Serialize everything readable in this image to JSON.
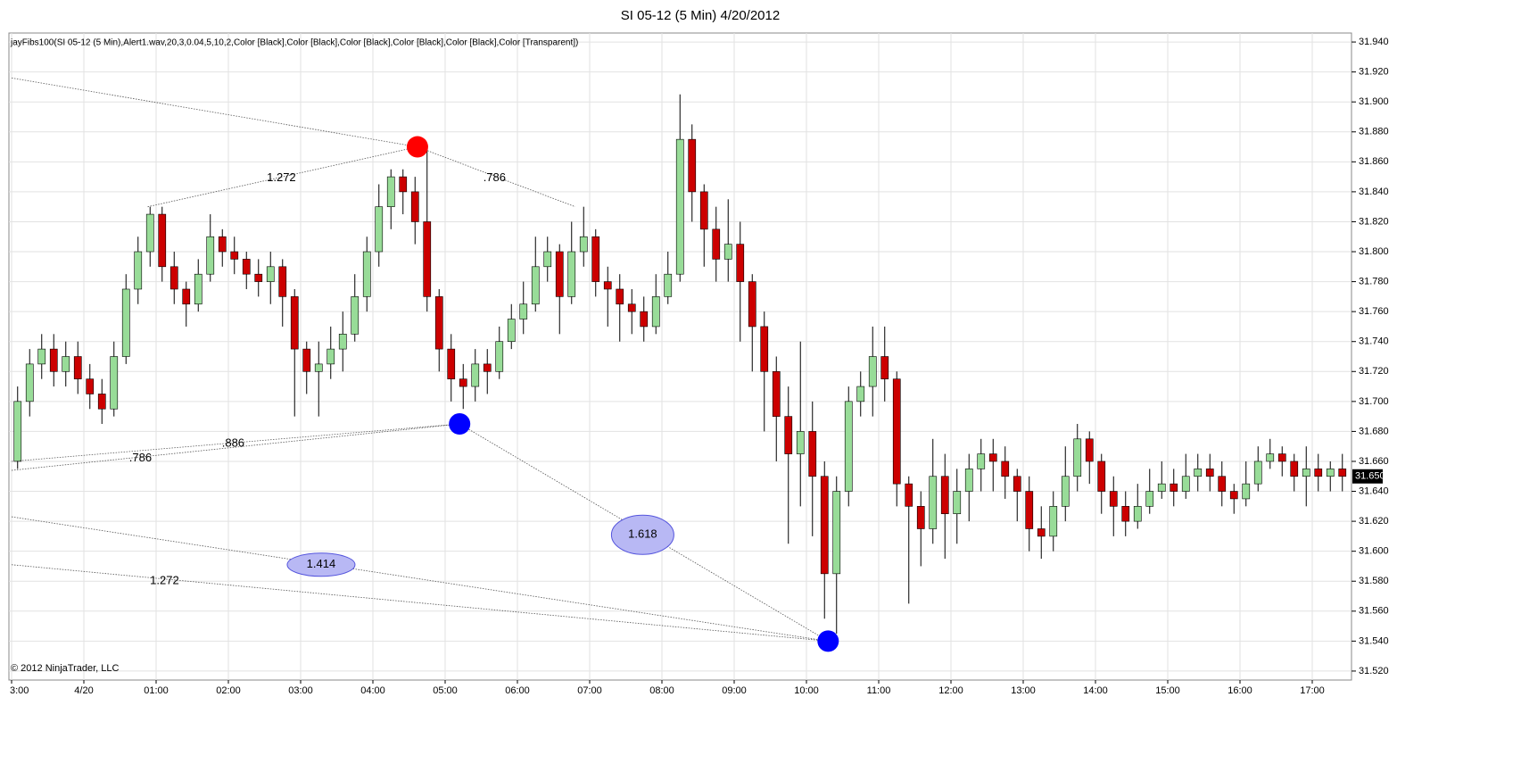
{
  "chart_data": {
    "type": "candlestick",
    "title": "SI 05-12 (5 Min)  4/20/2012",
    "indicator_label": "jayFibs100(SI 05-12 (5 Min),Alert1.wav,20,3,0.04,5,10,2,Color [Black],Color [Black],Color [Black],Color [Black],Color [Black],Color [Transparent])",
    "copyright": "© 2012 NinjaTrader, LLC",
    "up_color": "#98dc98",
    "down_color": "#cc0000",
    "open": [
      31.66,
      31.7,
      31.725,
      31.735,
      31.72,
      31.73,
      31.715,
      31.705,
      31.695,
      31.73,
      31.775,
      31.8,
      31.825,
      31.79,
      31.775,
      31.765,
      31.785,
      31.81,
      31.8,
      31.795,
      31.785,
      31.78,
      31.79,
      31.77,
      31.735,
      31.72,
      31.725,
      31.735,
      31.745,
      31.77,
      31.8,
      31.83,
      31.85,
      31.84,
      31.82,
      31.77,
      31.735,
      31.715,
      31.71,
      31.725,
      31.72,
      31.74,
      31.755,
      31.765,
      31.79,
      31.8,
      31.77,
      31.8,
      31.81,
      31.78,
      31.775,
      31.765,
      31.76,
      31.75,
      31.77,
      31.785,
      31.875,
      31.84,
      31.815,
      31.795,
      31.805,
      31.78,
      31.75,
      31.72,
      31.69,
      31.665,
      31.68,
      31.65,
      31.585,
      31.64,
      31.7,
      31.71,
      31.73,
      31.715,
      31.645,
      31.63,
      31.615,
      31.65,
      31.625,
      31.64,
      31.655,
      31.665,
      31.66,
      31.65,
      31.64,
      31.615,
      31.61,
      31.63,
      31.65,
      31.675,
      31.66,
      31.64,
      31.63,
      31.62,
      31.63,
      31.64,
      31.645,
      31.64,
      31.65,
      31.655,
      31.65,
      31.64,
      31.635,
      31.645,
      31.66,
      31.665,
      31.66,
      31.65,
      31.655,
      31.65,
      31.655
    ],
    "high": [
      31.71,
      31.735,
      31.745,
      31.745,
      31.74,
      31.74,
      31.725,
      31.715,
      31.74,
      31.785,
      31.81,
      31.83,
      31.83,
      31.8,
      31.78,
      31.795,
      31.825,
      31.815,
      31.81,
      31.8,
      31.795,
      31.8,
      31.795,
      31.775,
      31.74,
      31.74,
      31.75,
      31.76,
      31.785,
      31.81,
      31.845,
      31.855,
      31.855,
      31.85,
      31.87,
      31.775,
      31.745,
      31.725,
      31.735,
      31.735,
      31.75,
      31.765,
      31.78,
      31.81,
      31.81,
      31.805,
      31.82,
      31.83,
      31.815,
      31.79,
      31.785,
      31.775,
      31.77,
      31.785,
      31.8,
      31.905,
      31.885,
      31.845,
      31.83,
      31.835,
      31.82,
      31.785,
      31.76,
      31.73,
      31.71,
      31.74,
      31.7,
      31.66,
      31.65,
      31.71,
      31.72,
      31.75,
      31.75,
      31.72,
      31.65,
      31.64,
      31.675,
      31.665,
      31.655,
      31.665,
      31.675,
      31.675,
      31.67,
      31.655,
      31.65,
      31.63,
      31.64,
      31.67,
      31.685,
      31.68,
      31.665,
      31.65,
      31.64,
      31.645,
      31.655,
      31.66,
      31.655,
      31.665,
      31.665,
      31.665,
      31.66,
      31.645,
      31.66,
      31.67,
      31.675,
      31.67,
      31.665,
      31.67,
      31.665,
      31.66,
      31.665
    ],
    "low": [
      31.655,
      31.69,
      31.715,
      31.71,
      31.71,
      31.705,
      31.695,
      31.685,
      31.69,
      31.725,
      31.765,
      31.79,
      31.78,
      31.765,
      31.75,
      31.76,
      31.78,
      31.79,
      31.785,
      31.775,
      31.77,
      31.765,
      31.75,
      31.69,
      31.705,
      31.69,
      31.715,
      31.72,
      31.74,
      31.76,
      31.79,
      31.815,
      31.825,
      31.805,
      31.76,
      31.72,
      31.7,
      31.695,
      31.7,
      31.705,
      31.715,
      31.735,
      31.745,
      31.76,
      31.78,
      31.745,
      31.765,
      31.79,
      31.77,
      31.75,
      31.74,
      31.745,
      31.74,
      31.745,
      31.765,
      31.78,
      31.82,
      31.79,
      31.78,
      31.78,
      31.74,
      31.72,
      31.68,
      31.66,
      31.605,
      31.63,
      31.61,
      31.555,
      31.545,
      31.63,
      31.69,
      31.69,
      31.7,
      31.63,
      31.565,
      31.59,
      31.605,
      31.595,
      31.605,
      31.62,
      31.64,
      31.64,
      31.635,
      31.62,
      31.6,
      31.595,
      31.6,
      31.62,
      31.64,
      31.645,
      31.625,
      31.61,
      31.61,
      31.615,
      31.625,
      31.635,
      31.63,
      31.635,
      31.64,
      31.64,
      31.63,
      31.625,
      31.63,
      31.64,
      31.655,
      31.65,
      31.64,
      31.63,
      31.64,
      31.64,
      31.64
    ],
    "close": [
      31.7,
      31.725,
      31.735,
      31.72,
      31.73,
      31.715,
      31.705,
      31.695,
      31.73,
      31.775,
      31.8,
      31.825,
      31.79,
      31.775,
      31.765,
      31.785,
      31.81,
      31.8,
      31.795,
      31.785,
      31.78,
      31.79,
      31.77,
      31.735,
      31.72,
      31.725,
      31.735,
      31.745,
      31.77,
      31.8,
      31.83,
      31.85,
      31.84,
      31.82,
      31.77,
      31.735,
      31.715,
      31.71,
      31.725,
      31.72,
      31.74,
      31.755,
      31.765,
      31.79,
      31.8,
      31.77,
      31.8,
      31.81,
      31.78,
      31.775,
      31.765,
      31.76,
      31.75,
      31.77,
      31.785,
      31.875,
      31.84,
      31.815,
      31.795,
      31.805,
      31.78,
      31.75,
      31.72,
      31.69,
      31.665,
      31.68,
      31.65,
      31.585,
      31.64,
      31.7,
      31.71,
      31.73,
      31.715,
      31.645,
      31.63,
      31.615,
      31.65,
      31.625,
      31.64,
      31.655,
      31.665,
      31.66,
      31.65,
      31.64,
      31.615,
      31.61,
      31.63,
      31.65,
      31.675,
      31.66,
      31.64,
      31.63,
      31.62,
      31.63,
      31.64,
      31.645,
      31.64,
      31.65,
      31.655,
      31.65,
      31.64,
      31.635,
      31.645,
      31.66,
      31.665,
      31.66,
      31.65,
      31.655,
      31.65,
      31.655,
      31.65
    ],
    "xlim": [
      0,
      111
    ],
    "xticks": [
      {
        "value": 0,
        "label": "3:00"
      },
      {
        "value": 6,
        "label": "4/20"
      },
      {
        "value": 12,
        "label": "01:00"
      },
      {
        "value": 18,
        "label": "02:00"
      },
      {
        "value": 24,
        "label": "03:00"
      },
      {
        "value": 30,
        "label": "04:00"
      },
      {
        "value": 36,
        "label": "05:00"
      },
      {
        "value": 42,
        "label": "06:00"
      },
      {
        "value": 48,
        "label": "07:00"
      },
      {
        "value": 54,
        "label": "08:00"
      },
      {
        "value": 60,
        "label": "09:00"
      },
      {
        "value": 66,
        "label": "10:00"
      },
      {
        "value": 72,
        "label": "11:00"
      },
      {
        "value": 78,
        "label": "12:00"
      },
      {
        "value": 84,
        "label": "13:00"
      },
      {
        "value": 90,
        "label": "14:00"
      },
      {
        "value": 96,
        "label": "15:00"
      },
      {
        "value": 102,
        "label": "16:00"
      },
      {
        "value": 108,
        "label": "17:00"
      }
    ],
    "ylim": [
      31.514,
      31.946
    ],
    "yticks": [
      {
        "value": 31.52,
        "label": "31.520"
      },
      {
        "value": 31.54,
        "label": "31.540"
      },
      {
        "value": 31.56,
        "label": "31.560"
      },
      {
        "value": 31.58,
        "label": "31.580"
      },
      {
        "value": 31.6,
        "label": "31.600"
      },
      {
        "value": 31.62,
        "label": "31.620"
      },
      {
        "value": 31.64,
        "label": "31.640"
      },
      {
        "value": 31.66,
        "label": "31.660"
      },
      {
        "value": 31.68,
        "label": "31.680"
      },
      {
        "value": 31.7,
        "label": "31.700"
      },
      {
        "value": 31.72,
        "label": "31.720"
      },
      {
        "value": 31.74,
        "label": "31.740"
      },
      {
        "value": 31.76,
        "label": "31.760"
      },
      {
        "value": 31.78,
        "label": "31.780"
      },
      {
        "value": 31.8,
        "label": "31.800"
      },
      {
        "value": 31.82,
        "label": "31.820"
      },
      {
        "value": 31.84,
        "label": "31.840"
      },
      {
        "value": 31.86,
        "label": "31.860"
      },
      {
        "value": 31.88,
        "label": "31.880"
      },
      {
        "value": 31.9,
        "label": "31.900"
      },
      {
        "value": 31.92,
        "label": "31.920"
      },
      {
        "value": 31.94,
        "label": "31.940"
      }
    ],
    "grid": true,
    "last_price": {
      "value": 31.65,
      "label": "31.650"
    },
    "fib_lines": [
      {
        "from": [
          0,
          31.916
        ],
        "to": [
          33.7,
          31.87
        ]
      },
      {
        "from": [
          11.3,
          31.83
        ],
        "to": [
          33.7,
          31.87
        ]
      },
      {
        "from": [
          33.7,
          31.87
        ],
        "to": [
          46.8,
          31.83
        ]
      },
      {
        "from": [
          0,
          31.66
        ],
        "to": [
          37.2,
          31.685
        ]
      },
      {
        "from": [
          0,
          31.654
        ],
        "to": [
          37.2,
          31.685
        ]
      },
      {
        "from": [
          37.2,
          31.685
        ],
        "to": [
          67.8,
          31.54
        ]
      },
      {
        "from": [
          0,
          31.623
        ],
        "to": [
          67.8,
          31.54
        ]
      },
      {
        "from": [
          0,
          31.591
        ],
        "to": [
          67.8,
          31.54
        ]
      }
    ],
    "fib_labels": [
      {
        "text": "1.272",
        "at": [
          22.4,
          31.849
        ]
      },
      {
        "text": ".786",
        "at": [
          40.1,
          31.849
        ]
      },
      {
        "text": ".786",
        "at": [
          10.7,
          31.662
        ]
      },
      {
        "text": ".886",
        "at": [
          18.4,
          31.672
        ]
      },
      {
        "text": "1.618",
        "at": [
          52.4,
          31.611
        ],
        "style": "ellipse"
      },
      {
        "text": "1.414",
        "at": [
          25.7,
          31.591
        ],
        "style": "ellipse"
      },
      {
        "text": "1.272",
        "at": [
          12.7,
          31.58
        ]
      }
    ],
    "pivots": [
      {
        "x": 33.7,
        "y": 31.87,
        "color": "#ff0000"
      },
      {
        "x": 37.2,
        "y": 31.685,
        "color": "#0000ff"
      },
      {
        "x": 67.8,
        "y": 31.54,
        "color": "#0000ff"
      }
    ]
  }
}
